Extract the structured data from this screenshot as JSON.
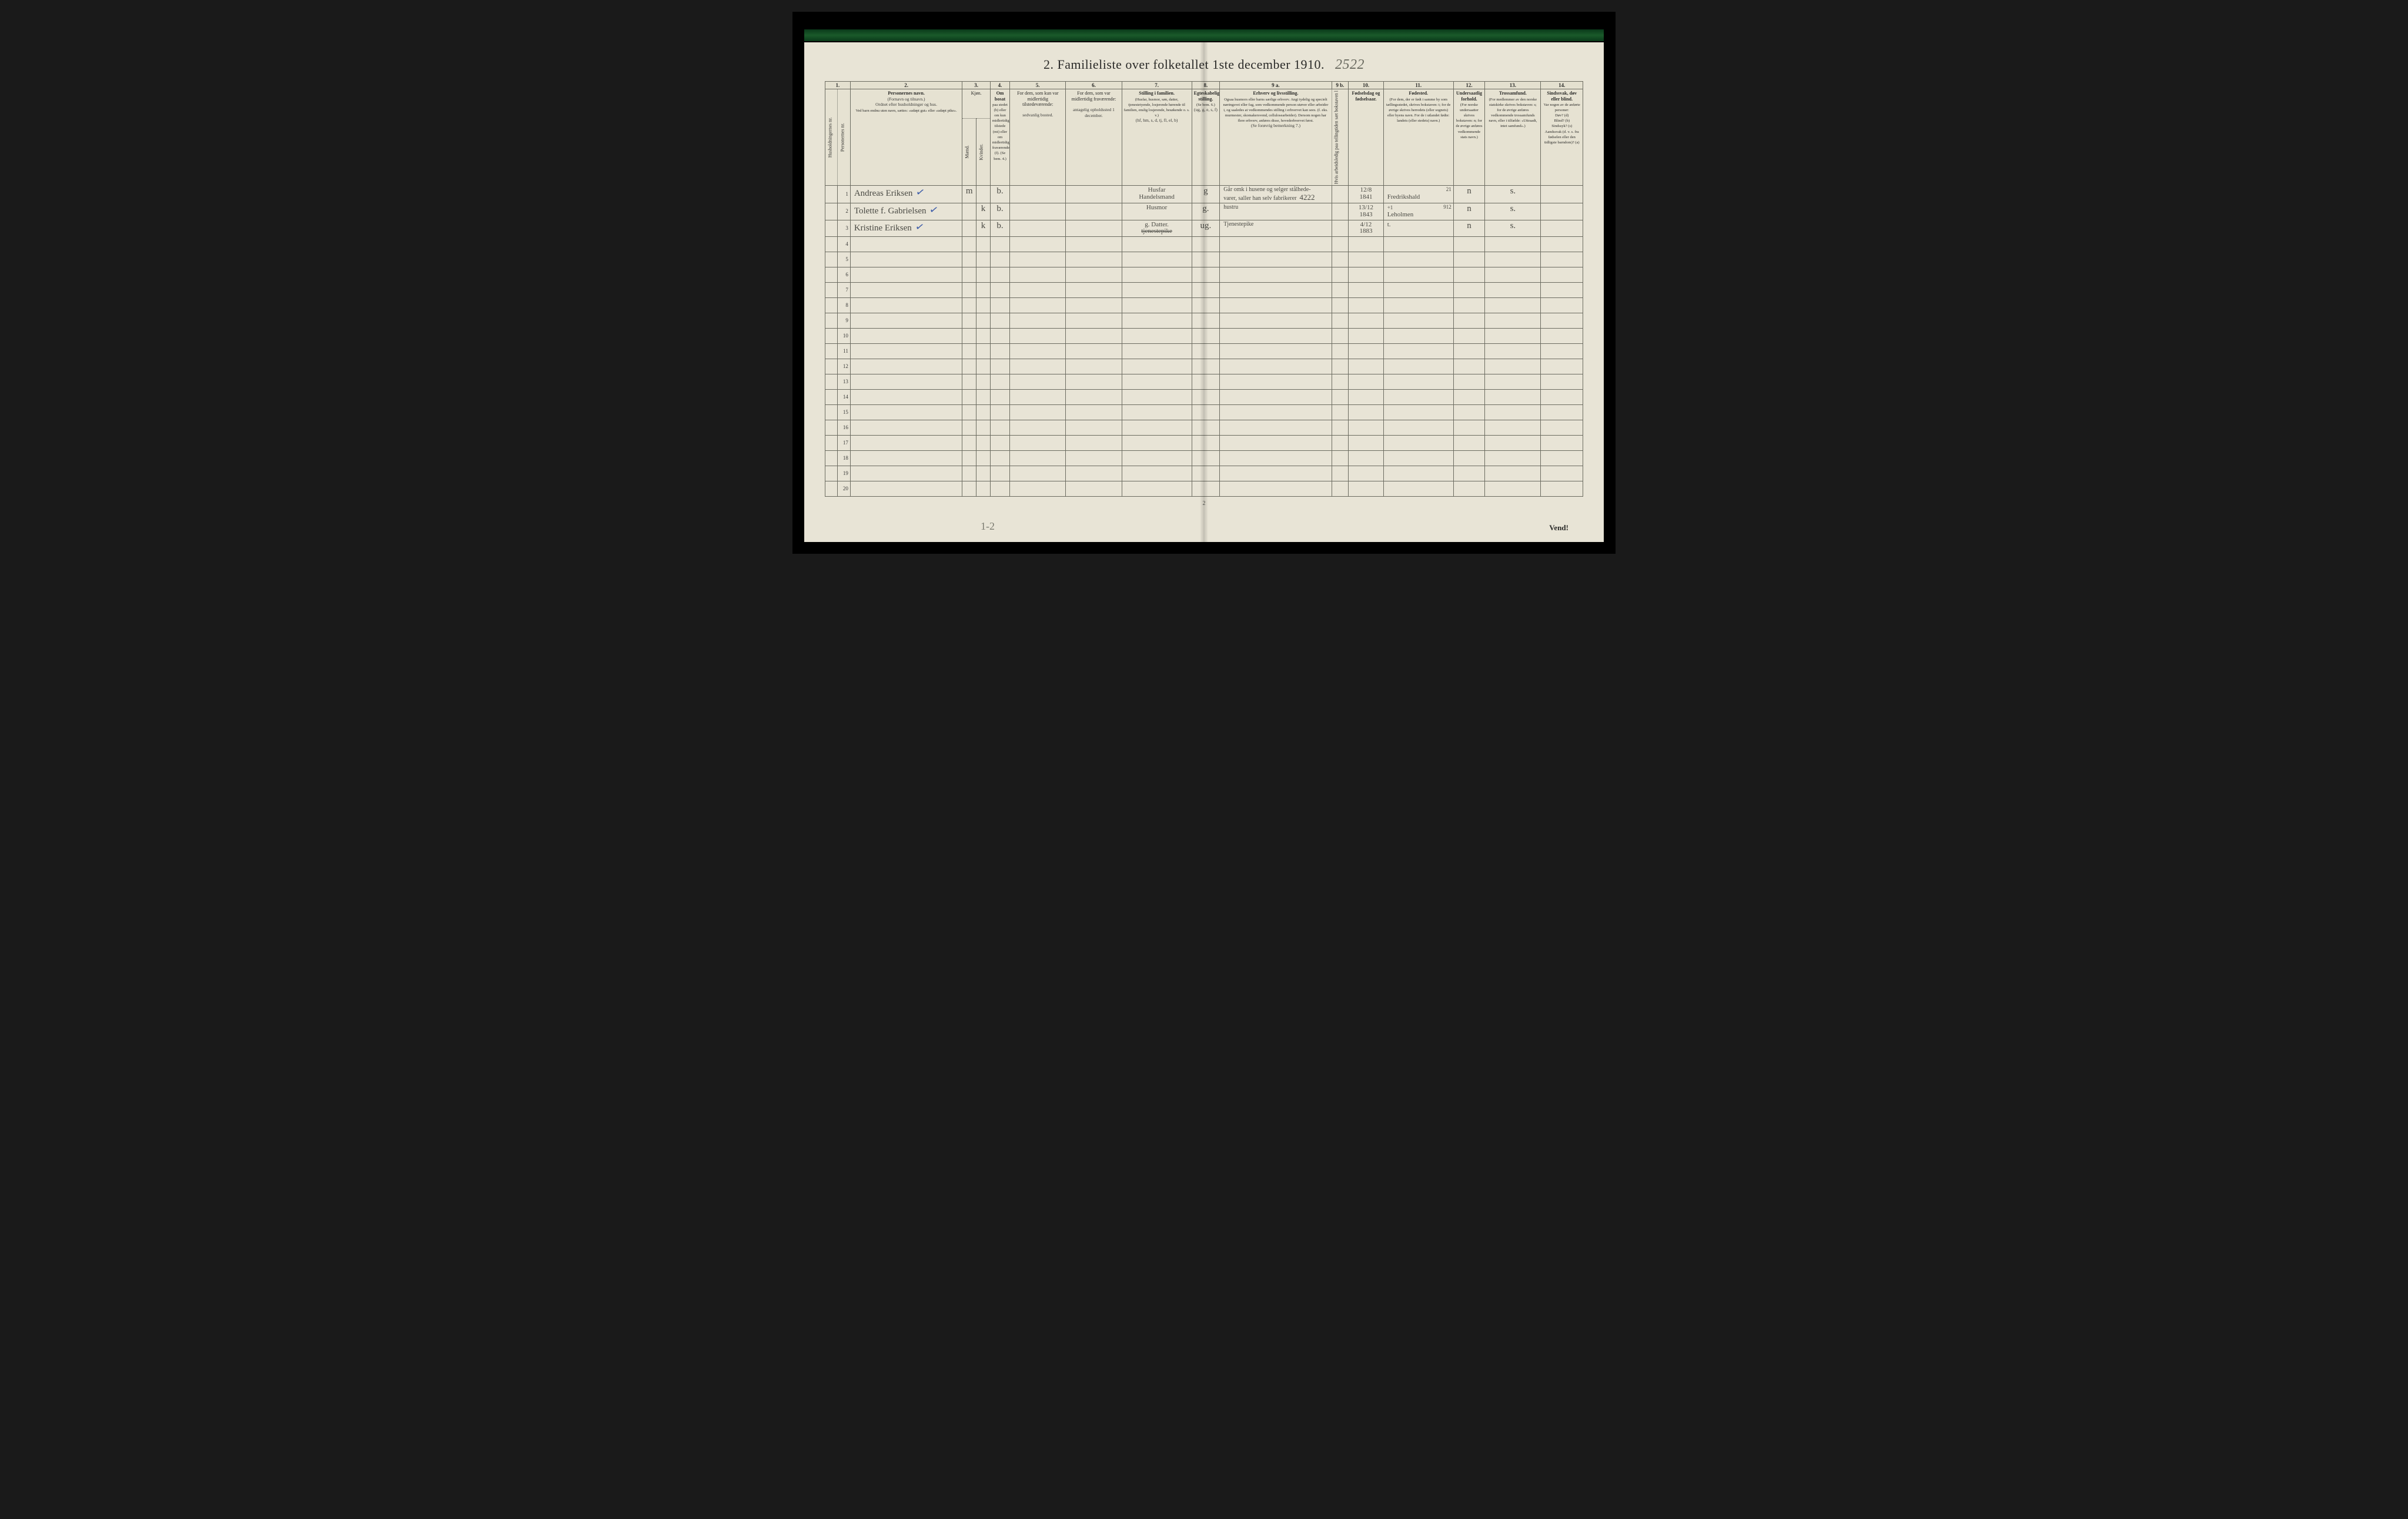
{
  "title": {
    "number": "2.",
    "text": "Familieliste over folketallet 1ste december 1910.",
    "handwritten_annotation": "2522"
  },
  "columns": {
    "c1": "1.",
    "c2": "2.",
    "c3": "3.",
    "c4": "4.",
    "c5": "5.",
    "c6": "6.",
    "c7": "7.",
    "c8": "8.",
    "c9a": "9 a.",
    "c9b": "9 b.",
    "c10": "10.",
    "c11": "11.",
    "c12": "12.",
    "c13": "13.",
    "c14": "14."
  },
  "headers": {
    "h1a": "Husholdningernes nr.",
    "h1b": "Personernes nr.",
    "h2_title": "Personernes navn.",
    "h2_sub1": "(Fornavn og tilnavn.)",
    "h2_sub2": "Ordnet efter husholdninger og hus.",
    "h2_sub3": "Ved barn endnu uten navn, sættes: «udøpt gut» eller «udøpt pike».",
    "h3_title": "Kjøn.",
    "h3_m": "Mænd.",
    "h3_k": "Kvinder.",
    "h3_mk": "m. k.",
    "h4_title": "Om bosat",
    "h4_body": "paa stedet (b) eller om kun midlertidig tilstede (mt) eller om midlertidig fraværende (f). (Se bem. 4.)",
    "h5_title": "For dem, som kun var midlertidig tilstedeværende:",
    "h5_body": "sedvanlig bosted.",
    "h6_title": "For dem, som var midlertidig fraværende:",
    "h6_body": "antagelig opholdssted 1 december.",
    "h7_title": "Stilling i familien.",
    "h7_body": "(Husfar, husmor, søn, datter, tjenestetyende, losjerende hørende til familien, enslig losjerende, besøkende o. s. v.)",
    "h7_foot": "(hf, hm, s, d, tj, fl, el, b)",
    "h8_title": "Egteskabelig stilling.",
    "h8_body": "(Se bem. 6.)",
    "h8_foot": "(ug, g, e, s, f)",
    "h9a_title": "Erhverv og livsstilling.",
    "h9a_body": "Ogsaa husmors eller barns særlige erhverv. Angi tydelig og specielt næringsvei eller fag, som vedkommende person utøver eller arbeider i, og saaledes at vedkommendes stilling i erhvervet kan sees. (f. eks. murmester, skomakersvend, cellulosearbeider). Dersom nogen har flere erhverv, anføres disse, hovederhvervet først.",
    "h9a_foot": "(Se forøvrig bemerkning 7.)",
    "h9b_title": "Hvis arbeidsledig paa tellingtiden sæt bokstaven l",
    "h10_title": "Fødselsdag og fødselsaar.",
    "h11_title": "Fødested.",
    "h11_body": "(For dem, der er født i samme by som tællingsstedet, skrives bokstaven: t; for de øvrige skrives herredets (eller sognets) eller byens navn. For de i utlandet fødte: landets (eller stedets) navn.)",
    "h12_title": "Undersaatlig forhold.",
    "h12_body": "(For norske undersaatter skrives bokstaven: n; for de øvrige anføres vedkommende stats navn.)",
    "h13_title": "Trossamfund.",
    "h13_body": "(For medlemmer av den norske statskirke skrives bokstaven: s; for de øvrige anføres vedkommende trossamfunds navn, eller i tilfælde: «Uttraadt, intet samfund».)",
    "h14_title": "Sindssvak, døv eller blind.",
    "h14_body": "Var nogen av de anførte personer:",
    "h14_list": "Døv? (d)\nBlind? (b)\nSindssyk? (s)\nAandssvak (d. v. s. fra fødselen eller den tidligste barndom)? (a)"
  },
  "rows": [
    {
      "n": "1",
      "name": "Andreas Eriksen",
      "tick": "✓",
      "sex": "m",
      "res": "b.",
      "pos_top": "Husfar",
      "pos_bot": "Handelsmand",
      "mar": "g",
      "occ_top": "Går omk i husene og selger stålhede-",
      "occ_bot": "varer, saller han selv fabrikerer",
      "badge": "4222",
      "birth_top": "12/8",
      "birth_bot": "1841",
      "place_top": "21",
      "place_bot": "Fredrikshald",
      "nat": "n",
      "rel": "s."
    },
    {
      "n": "2",
      "name": "Tolette f. Gabrielsen",
      "tick": "✓",
      "sex": "k",
      "res": "b.",
      "pos_top": "Husmor",
      "pos_bot": "",
      "mar": "g.",
      "occ_top": "hustru",
      "occ_bot": "",
      "badge": "",
      "birth_top": "13/12",
      "birth_bot": "1843",
      "place_top": "912",
      "place_bot": "Leholmen",
      "place_pre": "+1",
      "nat": "n",
      "rel": "s."
    },
    {
      "n": "3",
      "name": "Kristine Eriksen",
      "tick": "✓",
      "sex": "k",
      "res": "b.",
      "pos_top": "g. Datter.",
      "pos_bot": "tjenestepike",
      "pos_bot_struck": true,
      "mar": "ug.",
      "occ_top": "Tjenestepike",
      "occ_bot": "",
      "badge": "",
      "birth_top": "4/12",
      "birth_bot": "1883",
      "place_top": "",
      "place_bot": "t.",
      "nat": "n",
      "rel": "s."
    }
  ],
  "empty_rows": [
    "4",
    "5",
    "6",
    "7",
    "8",
    "9",
    "10",
    "11",
    "12",
    "13",
    "14",
    "15",
    "16",
    "17",
    "18",
    "19",
    "20"
  ],
  "footer": {
    "page_num": "2",
    "left_annotation": "1-2",
    "right_text": "Vend!"
  },
  "style": {
    "paper_bg": "#e8e4d6",
    "ink": "#2a2a28",
    "hand_ink": "#4a4a44",
    "border": "#6b6b60",
    "col_widths_pct": [
      1.8,
      1.8,
      16,
      2,
      2,
      2.8,
      8,
      8,
      10,
      4,
      16,
      2.4,
      5,
      10,
      4.5,
      8,
      6
    ]
  }
}
